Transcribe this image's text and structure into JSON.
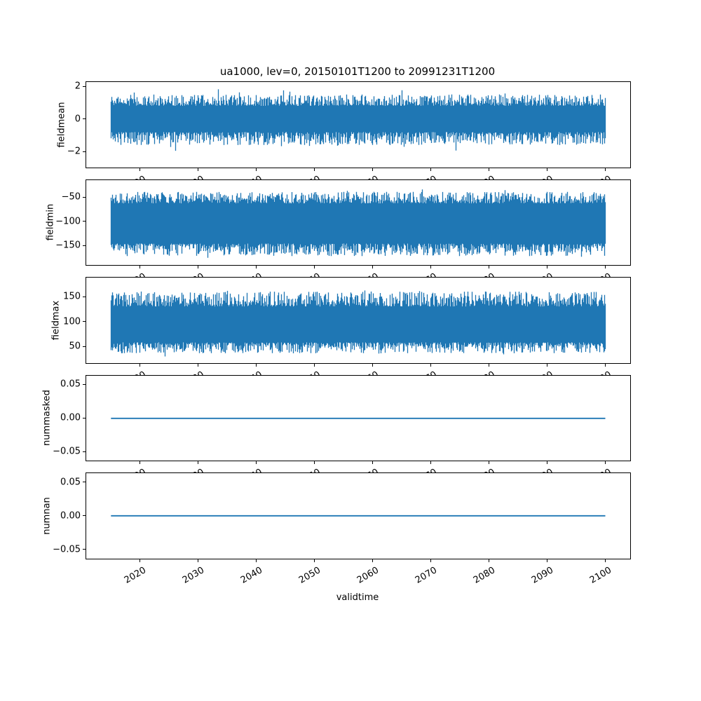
{
  "figure": {
    "title": "ua1000, lev=0, 20150101T1200 to 20991231T1200",
    "xlabel": "validtime",
    "line_color": "#1f77b4",
    "axis_color": "#000000",
    "background": "#ffffff"
  },
  "chart_data": {
    "type": "line",
    "title": "ua1000, lev=0, 20150101T1200 to 20991231T1200",
    "xlabel": "validtime",
    "x_unit": "year",
    "x_data_range": [
      2015.0,
      2099.97
    ],
    "xlim": [
      2010.75,
      2104.25
    ],
    "xticks": [
      2020,
      2030,
      2040,
      2050,
      2060,
      2070,
      2080,
      2090,
      2100
    ],
    "xtick_labels": [
      "2020",
      "2030",
      "2040",
      "2050",
      "2060",
      "2070",
      "2080",
      "2090",
      "2100"
    ],
    "xtick_rotation_deg": 30,
    "grid": false,
    "legend": null,
    "subplots": [
      {
        "name": "fieldmean",
        "ylabel": "fieldmean",
        "ylim": [
          -2.95,
          2.26
        ],
        "yticks": [
          2,
          0,
          -2
        ],
        "ytick_labels": [
          "2",
          "0",
          "−2"
        ],
        "series": {
          "kind": "noise-band",
          "mean": 0,
          "dense_range": [
            -1.6,
            1.5
          ],
          "extreme_range": [
            -2.6,
            2.1
          ],
          "seed": 11,
          "hi": {
            "base": 0.8,
            "var": 0.7,
            "exp": 1.5,
            "spike": 0.6,
            "p": 0.015
          },
          "lo": {
            "base": -0.8,
            "var": 0.8,
            "exp": 1.5,
            "spike": 0.95,
            "p": 0.02
          }
        }
      },
      {
        "name": "fieldmin",
        "ylabel": "fieldmin",
        "ylim": [
          -190,
          -14
        ],
        "yticks": [
          -50,
          -100,
          -150
        ],
        "ytick_labels": [
          "−50",
          "−100",
          "−150"
        ],
        "series": {
          "kind": "noise-band",
          "mean": -104,
          "dense_range": [
            -171,
            -38
          ],
          "extreme_range": [
            -179,
            -31
          ],
          "seed": 22,
          "hi": {
            "base": -62,
            "var": 24,
            "exp": 1.5,
            "spike": 7,
            "p": 0.02
          },
          "lo": {
            "base": -145,
            "var": 26,
            "exp": 1.5,
            "spike": 8,
            "p": 0.02
          }
        }
      },
      {
        "name": "fieldmax",
        "ylabel": "fieldmax",
        "ylim": [
          17,
          188
        ],
        "yticks": [
          150,
          100,
          50
        ],
        "ytick_labels": [
          "150",
          "100",
          "50"
        ],
        "series": {
          "kind": "noise-band",
          "mean": 92,
          "dense_range": [
            36,
            160
          ],
          "extreme_range": [
            28,
            172
          ],
          "seed": 33,
          "hi": {
            "base": 130,
            "var": 30,
            "exp": 1.5,
            "spike": 14,
            "p": 0.02
          },
          "lo": {
            "base": 58,
            "var": 22,
            "exp": 1.5,
            "spike": 8,
            "p": 0.02
          }
        }
      },
      {
        "name": "nummasked",
        "ylabel": "nummasked",
        "ylim": [
          -0.0635,
          0.0635
        ],
        "yticks": [
          0.05,
          0.0,
          -0.05
        ],
        "ytick_labels": [
          "0.05",
          "0.00",
          "−0.05"
        ],
        "series": {
          "kind": "constant",
          "value": 0.0
        }
      },
      {
        "name": "numnan",
        "ylabel": "numnan",
        "ylim": [
          -0.0635,
          0.0635
        ],
        "yticks": [
          0.05,
          0.0,
          -0.05
        ],
        "ytick_labels": [
          "0.05",
          "0.00",
          "−0.05"
        ],
        "series": {
          "kind": "constant",
          "value": 0.0
        }
      }
    ]
  }
}
